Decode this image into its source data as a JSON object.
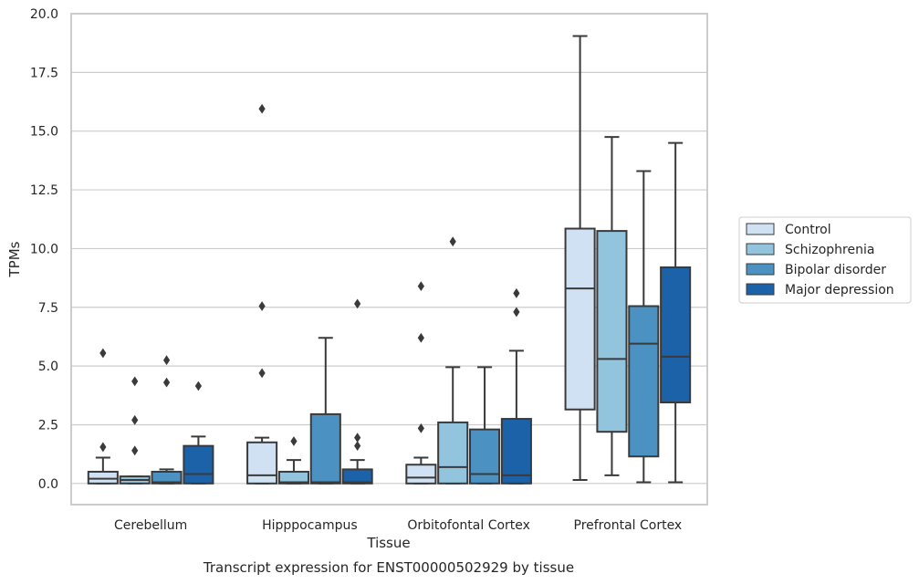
{
  "chart_data": {
    "type": "boxplot",
    "title": "Transcript expression for ENST00000502929 by tissue",
    "xlabel": "Tissue",
    "ylabel": "TPMs",
    "ylim": [
      -0.9,
      20.0
    ],
    "yticks": [
      "0.0",
      "2.5",
      "5.0",
      "7.5",
      "10.0",
      "12.5",
      "15.0",
      "17.5",
      "20.0"
    ],
    "grid": "horizontal",
    "legend_position": "right",
    "categories": [
      "Cerebellum",
      "Hipppocampus",
      "Orbitofontal Cortex",
      "Prefrontal Cortex"
    ],
    "series": [
      {
        "name": "Control",
        "color": "#cfe1f2",
        "boxes": [
          {
            "whisker_low": 0.0,
            "q1": 0.0,
            "median": 0.2,
            "q3": 0.5,
            "whisker_high": 1.1,
            "outliers": [
              1.55,
              5.55
            ]
          },
          {
            "whisker_low": 0.0,
            "q1": 0.0,
            "median": 0.35,
            "q3": 1.75,
            "whisker_high": 1.95,
            "outliers": [
              4.7,
              7.55,
              15.95
            ]
          },
          {
            "whisker_low": 0.0,
            "q1": 0.0,
            "median": 0.25,
            "q3": 0.8,
            "whisker_high": 1.1,
            "outliers": [
              2.35,
              6.2,
              8.4
            ]
          },
          {
            "whisker_low": 0.15,
            "q1": 3.15,
            "median": 8.3,
            "q3": 10.85,
            "whisker_high": 19.05,
            "outliers": []
          }
        ]
      },
      {
        "name": "Schizophrenia",
        "color": "#93c4de",
        "boxes": [
          {
            "whisker_low": 0.0,
            "q1": 0.0,
            "median": 0.15,
            "q3": 0.3,
            "whisker_high": 0.3,
            "outliers": [
              1.4,
              2.7,
              4.35
            ]
          },
          {
            "whisker_low": 0.0,
            "q1": 0.0,
            "median": 0.05,
            "q3": 0.5,
            "whisker_high": 1.0,
            "outliers": [
              1.8
            ]
          },
          {
            "whisker_low": 0.0,
            "q1": 0.0,
            "median": 0.7,
            "q3": 2.6,
            "whisker_high": 4.95,
            "outliers": [
              10.3
            ]
          },
          {
            "whisker_low": 0.35,
            "q1": 2.2,
            "median": 5.3,
            "q3": 10.75,
            "whisker_high": 14.75,
            "outliers": []
          }
        ]
      },
      {
        "name": "Bipolar disorder",
        "color": "#4b91c2",
        "boxes": [
          {
            "whisker_low": 0.0,
            "q1": 0.0,
            "median": 0.05,
            "q3": 0.5,
            "whisker_high": 0.6,
            "outliers": [
              4.3,
              5.25
            ]
          },
          {
            "whisker_low": 0.0,
            "q1": 0.0,
            "median": 0.05,
            "q3": 2.95,
            "whisker_high": 6.2,
            "outliers": []
          },
          {
            "whisker_low": 0.0,
            "q1": 0.0,
            "median": 0.4,
            "q3": 2.3,
            "whisker_high": 4.95,
            "outliers": []
          },
          {
            "whisker_low": 0.05,
            "q1": 1.15,
            "median": 5.95,
            "q3": 7.55,
            "whisker_high": 13.3,
            "outliers": []
          }
        ]
      },
      {
        "name": "Major depression",
        "color": "#1c62a8",
        "boxes": [
          {
            "whisker_low": 0.0,
            "q1": 0.0,
            "median": 0.4,
            "q3": 1.6,
            "whisker_high": 2.0,
            "outliers": [
              4.15
            ]
          },
          {
            "whisker_low": 0.0,
            "q1": 0.0,
            "median": 0.05,
            "q3": 0.6,
            "whisker_high": 1.0,
            "outliers": [
              1.6,
              1.95,
              7.65
            ]
          },
          {
            "whisker_low": 0.0,
            "q1": 0.0,
            "median": 0.35,
            "q3": 2.75,
            "whisker_high": 5.65,
            "outliers": [
              7.3,
              8.1
            ]
          },
          {
            "whisker_low": 0.05,
            "q1": 3.45,
            "median": 5.4,
            "q3": 9.2,
            "whisker_high": 14.5,
            "outliers": []
          }
        ]
      }
    ]
  }
}
